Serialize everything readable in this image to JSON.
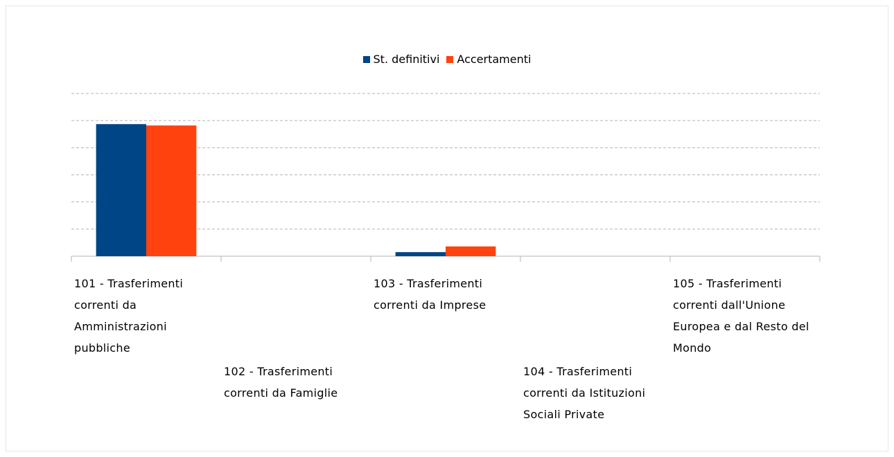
{
  "chart_data": {
    "type": "bar",
    "categories": [
      "101 - Trasferimenti correnti da Amministrazioni pubbliche",
      "102 - Trasferimenti correnti da Famiglie",
      "103 - Trasferimenti correnti da Imprese",
      "104 - Trasferimenti correnti da Istituzioni Sociali Private",
      "105 - Trasferimenti correnti dall'Unione Europea e dal Resto del Mondo"
    ],
    "series": [
      {
        "name": "St. definitivi",
        "color": "#004586",
        "values": [
          4.87,
          0,
          0.15,
          0,
          0
        ]
      },
      {
        "name": "Accertamenti",
        "color": "#ff420e",
        "values": [
          4.82,
          0,
          0.36,
          0,
          0
        ]
      }
    ],
    "ylim": [
      0,
      6
    ],
    "yticks": [
      0,
      1,
      2,
      3,
      4,
      5,
      6
    ],
    "grid": true,
    "legend": "top"
  }
}
